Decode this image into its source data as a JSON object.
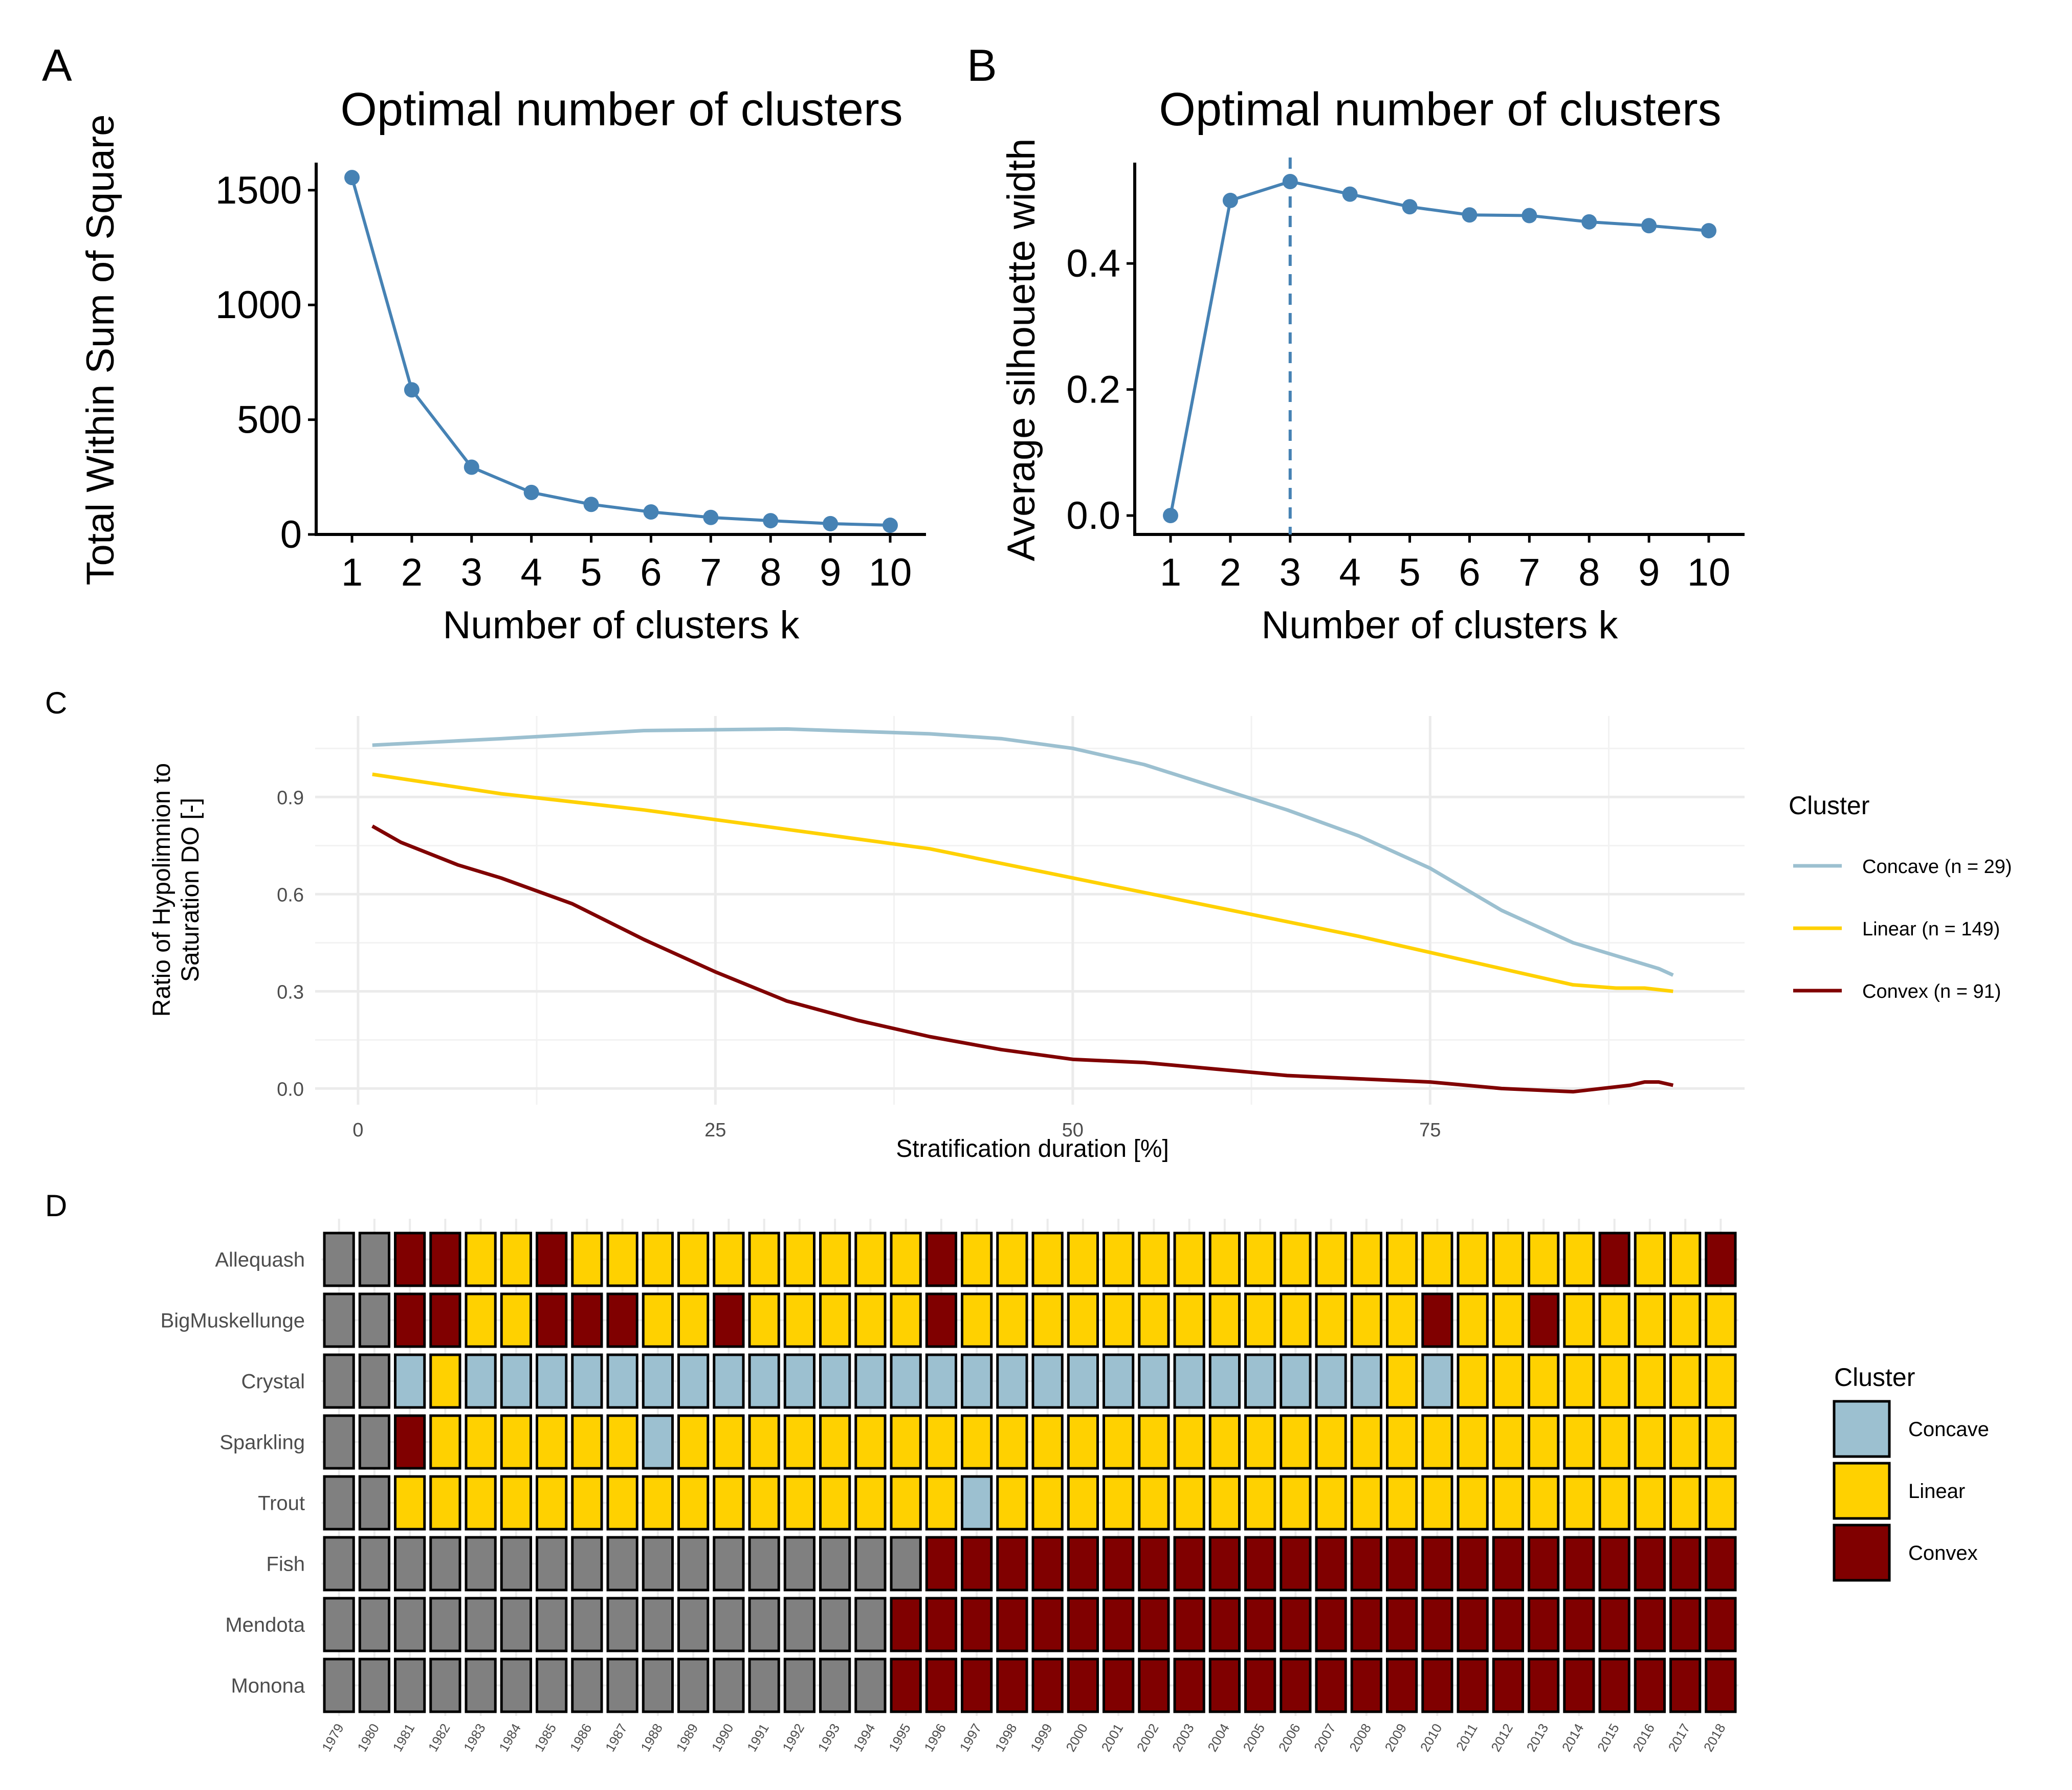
{
  "panel_labels": {
    "a": "A",
    "b": "B",
    "c": "C",
    "d": "D"
  },
  "colors": {
    "elbow_line": "#4682b4",
    "concave": "#9cc0d0",
    "linear": "#ffd100",
    "convex": "#800000",
    "missing": "#808080",
    "grid": "#ebebeb"
  },
  "chart_data": [
    {
      "id": "A",
      "type": "line",
      "title": "Optimal number of clusters",
      "xlabel": "Number of clusters k",
      "ylabel": "Total Within Sum of Square",
      "x": [
        1,
        2,
        3,
        4,
        5,
        6,
        7,
        8,
        9,
        10
      ],
      "values": [
        1555,
        630,
        293,
        183,
        131,
        98,
        74,
        60,
        47,
        40
      ],
      "y_ticks": [
        0,
        500,
        1000,
        1500
      ],
      "ylim": [
        0,
        1620
      ],
      "grid": false
    },
    {
      "id": "B",
      "type": "line",
      "title": "Optimal number of clusters",
      "xlabel": "Number of clusters k",
      "ylabel": "Average silhouette width",
      "x": [
        1,
        2,
        3,
        4,
        5,
        6,
        7,
        8,
        9,
        10
      ],
      "values": [
        0.0,
        0.5,
        0.53,
        0.51,
        0.49,
        0.477,
        0.476,
        0.466,
        0.46,
        0.452
      ],
      "y_ticks": [
        0.0,
        0.2,
        0.4
      ],
      "y_tick_labels": [
        "0.0",
        "0.2",
        "0.4"
      ],
      "ylim": [
        -0.03,
        0.56
      ],
      "vline_x": 3,
      "grid": false
    },
    {
      "id": "C",
      "type": "line",
      "xlabel": "Stratification duration [%]",
      "ylabel_lines": [
        "Ratio of Hypolimnion to",
        "Saturation DO [-]"
      ],
      "xlim": [
        -3,
        97
      ],
      "ylim": [
        -0.05,
        1.15
      ],
      "x_ticks": [
        0,
        25,
        50,
        75
      ],
      "y_ticks": [
        0.0,
        0.3,
        0.6,
        0.9
      ],
      "y_tick_labels": [
        "0.0",
        "0.3",
        "0.6",
        "0.9"
      ],
      "grid": true,
      "legend_title": "Cluster",
      "legend_position": "right",
      "series": [
        {
          "name": "Concave (n = 29)",
          "color_key": "concave",
          "points": [
            [
              1,
              1.06
            ],
            [
              10,
              1.08
            ],
            [
              20,
              1.105
            ],
            [
              30,
              1.11
            ],
            [
              40,
              1.095
            ],
            [
              45,
              1.08
            ],
            [
              50,
              1.05
            ],
            [
              55,
              1.0
            ],
            [
              60,
              0.93
            ],
            [
              65,
              0.86
            ],
            [
              70,
              0.78
            ],
            [
              75,
              0.68
            ],
            [
              80,
              0.55
            ],
            [
              85,
              0.45
            ],
            [
              88,
              0.41
            ],
            [
              91,
              0.37
            ],
            [
              92,
              0.35
            ]
          ]
        },
        {
          "name": "Linear (n = 149)",
          "color_key": "linear",
          "points": [
            [
              1,
              0.97
            ],
            [
              10,
              0.91
            ],
            [
              20,
              0.86
            ],
            [
              30,
              0.8
            ],
            [
              40,
              0.74
            ],
            [
              50,
              0.65
            ],
            [
              60,
              0.56
            ],
            [
              70,
              0.47
            ],
            [
              75,
              0.42
            ],
            [
              80,
              0.37
            ],
            [
              85,
              0.32
            ],
            [
              88,
              0.31
            ],
            [
              90,
              0.31
            ],
            [
              92,
              0.3
            ]
          ]
        },
        {
          "name": "Convex (n = 91)",
          "color_key": "convex",
          "points": [
            [
              1,
              0.81
            ],
            [
              3,
              0.76
            ],
            [
              7,
              0.69
            ],
            [
              10,
              0.65
            ],
            [
              15,
              0.57
            ],
            [
              20,
              0.46
            ],
            [
              25,
              0.36
            ],
            [
              30,
              0.27
            ],
            [
              35,
              0.21
            ],
            [
              40,
              0.16
            ],
            [
              45,
              0.12
            ],
            [
              50,
              0.09
            ],
            [
              55,
              0.08
            ],
            [
              60,
              0.06
            ],
            [
              65,
              0.04
            ],
            [
              70,
              0.03
            ],
            [
              75,
              0.02
            ],
            [
              80,
              0.0
            ],
            [
              85,
              -0.01
            ],
            [
              87,
              0.0
            ],
            [
              89,
              0.01
            ],
            [
              90,
              0.02
            ],
            [
              91,
              0.02
            ],
            [
              92,
              0.01
            ]
          ]
        }
      ]
    },
    {
      "id": "D",
      "type": "heatmap",
      "legend_title": "Cluster",
      "legend": [
        {
          "label": "Concave",
          "color_key": "concave"
        },
        {
          "label": "Linear",
          "color_key": "linear"
        },
        {
          "label": "Convex",
          "color_key": "convex"
        }
      ],
      "years": [
        "1979",
        "1980",
        "1981",
        "1982",
        "1983",
        "1984",
        "1985",
        "1986",
        "1987",
        "1988",
        "1989",
        "1990",
        "1991",
        "1992",
        "1993",
        "1994",
        "1995",
        "1996",
        "1997",
        "1998",
        "1999",
        "2000",
        "2001",
        "2002",
        "2003",
        "2004",
        "2005",
        "2006",
        "2007",
        "2008",
        "2009",
        "2010",
        "2011",
        "2012",
        "2013",
        "2014",
        "2015",
        "2016",
        "2017",
        "2018"
      ],
      "code_key": {
        "G": "no data",
        "A": "Concave",
        "L": "Linear",
        "V": "Convex"
      },
      "rows": [
        {
          "lake": "Allequash",
          "codes": "GGVVLLVLLLLLLLLLLVLLLLLLLLLLLLLLLLLLVLLV"
        },
        {
          "lake": "BigMuskellunge",
          "codes": "GGVVLLVVVLLVLLLLLVLLLLLLLLLLLLLVLLVLLLLL"
        },
        {
          "lake": "Crystal",
          "codes": "GGALAAAAAAAAAAAAAAAAAAAAAAAAAALALLLLLLLL"
        },
        {
          "lake": "Sparkling",
          "codes": "GGVLLLLLLALLLLLLLLLLLLLLLLLLLLLLLLLLLLLL"
        },
        {
          "lake": "Trout",
          "codes": "GGLLLLLLLLLLLLLLLLALLLLLLLLLLLLLLLLLLLLL"
        },
        {
          "lake": "Fish",
          "codes": "GGGGGGGGGGGGGGGGGVVVVVVVVVVVVVVVVVVVVVVV"
        },
        {
          "lake": "Mendota",
          "codes": "GGGGGGGGGGGGGGGGVVVVVVVVVVVVVVVVVVVVVVVV"
        },
        {
          "lake": "Monona",
          "codes": "GGGGGGGGGGGGGGGGVVVVVVVVVVVVVVVVVVVVVVVV"
        }
      ]
    }
  ]
}
